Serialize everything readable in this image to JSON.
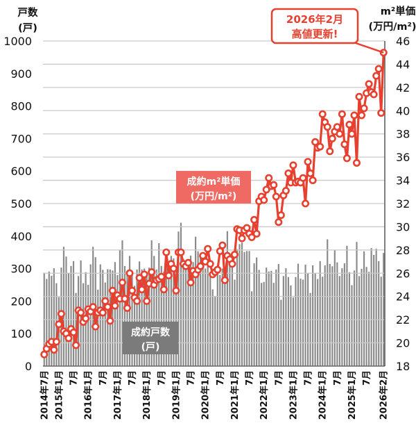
{
  "axis_titles": {
    "left_line1": "戸数",
    "left_line2": "(戸)",
    "right_line1": "m²単価",
    "right_line2": "(万円/m²)"
  },
  "callout": {
    "line1": "2026年2月",
    "line2": "高値更新!"
  },
  "series_labels": {
    "price_line1": "成約m²単価",
    "price_line2": "(万円/m²)",
    "units_line1": "成約戸数",
    "units_line2": "(戸)"
  },
  "colors": {
    "price_line": "#e8402f",
    "price_label_bg": "#ee6a62",
    "units_bar": "#8a8a8a",
    "units_label_bg": "#7b7b7b",
    "grid": "#c9c9c9"
  },
  "chart_data": {
    "type": "bar",
    "title": "",
    "xlabel": "",
    "ylabel_left": "戸数 (戸)",
    "ylabel_right": "m²単価 (万円/m²)",
    "ylim_left": [
      0,
      1000
    ],
    "yticks_left": [
      0,
      100,
      200,
      300,
      400,
      500,
      600,
      700,
      800,
      900,
      1000
    ],
    "ylim_right": [
      18,
      46
    ],
    "yticks_right": [
      18,
      20,
      22,
      24,
      26,
      28,
      30,
      32,
      34,
      36,
      38,
      40,
      42,
      44,
      46
    ],
    "grid": true,
    "legend": "inline labels",
    "categories": [
      "2014-07",
      "2014-08",
      "2014-09",
      "2014-10",
      "2014-11",
      "2014-12",
      "2015-01",
      "2015-02",
      "2015-03",
      "2015-04",
      "2015-05",
      "2015-06",
      "2015-07",
      "2015-08",
      "2015-09",
      "2015-10",
      "2015-11",
      "2015-12",
      "2016-01",
      "2016-02",
      "2016-03",
      "2016-04",
      "2016-05",
      "2016-06",
      "2016-07",
      "2016-08",
      "2016-09",
      "2016-10",
      "2016-11",
      "2016-12",
      "2017-01",
      "2017-02",
      "2017-03",
      "2017-04",
      "2017-05",
      "2017-06",
      "2017-07",
      "2017-08",
      "2017-09",
      "2017-10",
      "2017-11",
      "2017-12",
      "2018-01",
      "2018-02",
      "2018-03",
      "2018-04",
      "2018-05",
      "2018-06",
      "2018-07",
      "2018-08",
      "2018-09",
      "2018-10",
      "2018-11",
      "2018-12",
      "2019-01",
      "2019-02",
      "2019-03",
      "2019-04",
      "2019-05",
      "2019-06",
      "2019-07",
      "2019-08",
      "2019-09",
      "2019-10",
      "2019-11",
      "2019-12",
      "2020-01",
      "2020-02",
      "2020-03",
      "2020-04",
      "2020-05",
      "2020-06",
      "2020-07",
      "2020-08",
      "2020-09",
      "2020-10",
      "2020-11",
      "2020-12",
      "2021-01",
      "2021-02",
      "2021-03",
      "2021-04",
      "2021-05",
      "2021-06",
      "2021-07",
      "2021-08",
      "2021-09",
      "2021-10",
      "2021-11",
      "2021-12",
      "2022-01",
      "2022-02",
      "2022-03",
      "2022-04",
      "2022-05",
      "2022-06",
      "2022-07",
      "2022-08",
      "2022-09",
      "2022-10",
      "2022-11",
      "2022-12",
      "2023-01",
      "2023-02",
      "2023-03",
      "2023-04",
      "2023-05",
      "2023-06",
      "2023-07",
      "2023-08",
      "2023-09",
      "2023-10",
      "2023-11",
      "2023-12",
      "2024-01",
      "2024-02",
      "2024-03",
      "2024-04",
      "2024-05",
      "2024-06",
      "2024-07",
      "2024-08",
      "2024-09",
      "2024-10",
      "2024-11",
      "2024-12",
      "2025-01",
      "2025-02",
      "2025-03",
      "2025-04",
      "2025-05",
      "2025-06",
      "2025-07",
      "2025-08",
      "2025-09",
      "2025-10",
      "2025-11",
      "2025-12",
      "2026-01",
      "2026-02"
    ],
    "xtick_labels": [
      {
        "index": 0,
        "label": "2014年7月"
      },
      {
        "index": 6,
        "label": "2015年1月"
      },
      {
        "index": 12,
        "label": "7月"
      },
      {
        "index": 18,
        "label": "2016年1月"
      },
      {
        "index": 24,
        "label": "7月"
      },
      {
        "index": 30,
        "label": "2017年1月"
      },
      {
        "index": 36,
        "label": "7月"
      },
      {
        "index": 42,
        "label": "2018年1月"
      },
      {
        "index": 48,
        "label": "7月"
      },
      {
        "index": 54,
        "label": "2019年1月"
      },
      {
        "index": 60,
        "label": "7月"
      },
      {
        "index": 66,
        "label": "2020年1月"
      },
      {
        "index": 72,
        "label": "7月"
      },
      {
        "index": 78,
        "label": "2021年1月"
      },
      {
        "index": 84,
        "label": "7月"
      },
      {
        "index": 90,
        "label": "2022年1月"
      },
      {
        "index": 96,
        "label": "7月"
      },
      {
        "index": 102,
        "label": "2023年1月"
      },
      {
        "index": 108,
        "label": "7月"
      },
      {
        "index": 114,
        "label": "2024年1月"
      },
      {
        "index": 120,
        "label": "7月"
      },
      {
        "index": 126,
        "label": "2025年1月"
      },
      {
        "index": 132,
        "label": "7月"
      },
      {
        "index": 139,
        "label": "2026年2月"
      }
    ],
    "series": [
      {
        "name": "成約戸数(戸)",
        "type": "bar",
        "axis": "left",
        "values": [
          287,
          268,
          291,
          278,
          301,
          255,
          212,
          303,
          367,
          337,
          287,
          308,
          323,
          225,
          277,
          325,
          255,
          289,
          250,
          313,
          367,
          335,
          235,
          313,
          296,
          257,
          298,
          297,
          294,
          320,
          280,
          358,
          387,
          308,
          280,
          339,
          283,
          247,
          297,
          322,
          297,
          300,
          284,
          303,
          387,
          339,
          297,
          378,
          308,
          290,
          340,
          320,
          339,
          331,
          300,
          414,
          441,
          330,
          320,
          300,
          340,
          320,
          398,
          353,
          334,
          330,
          300,
          320,
          275,
          236,
          214,
          300,
          280,
          300,
          290,
          415,
          330,
          340,
          266,
          360,
          375,
          380,
          351,
          354,
          354,
          230,
          316,
          334,
          296,
          256,
          259,
          303,
          291,
          293,
          256,
          297,
          314,
          204,
          277,
          301,
          274,
          248,
          211,
          274,
          315,
          269,
          266,
          312,
          285,
          225,
          310,
          285,
          268,
          323,
          275,
          310,
          390,
          314,
          307,
          357,
          319,
          277,
          301,
          316,
          370,
          289,
          249,
          294,
          382,
          277,
          299,
          353,
          305,
          290,
          363,
          342,
          361,
          323,
          275,
          348
        ]
      },
      {
        "name": "成約m²単価(万円/m²)",
        "type": "line",
        "axis": "right",
        "values": [
          19.0,
          19.5,
          19.9,
          20.1,
          19.4,
          20.1,
          21.6,
          22.5,
          21.0,
          20.8,
          20.4,
          21.2,
          20.9,
          19.8,
          22.8,
          22.6,
          21.8,
          22.1,
          22.9,
          22.7,
          23.1,
          21.4,
          22.6,
          22.8,
          22.6,
          23.6,
          23.1,
          21.9,
          24.5,
          23.2,
          24.1,
          23.8,
          25.2,
          23.8,
          23.0,
          26.0,
          24.5,
          23.9,
          23.6,
          25.6,
          24.6,
          25.9,
          23.6,
          25.1,
          26.1,
          25.0,
          25.4,
          25.5,
          25.7,
          24.6,
          27.8,
          25.8,
          26.8,
          26.4,
          24.5,
          27.8,
          27.8,
          26.8,
          26.6,
          26.9,
          25.2,
          26.2,
          25.9,
          26.3,
          26.6,
          27.5,
          27.0,
          28.1,
          26.8,
          25.9,
          26.1,
          26.3,
          27.9,
          28.4,
          25.4,
          27.5,
          27.2,
          26.8,
          27.6,
          29.8,
          29.7,
          29.0,
          29.7,
          29.9,
          29.4,
          29.1,
          30.6,
          29.4,
          32.2,
          32.6,
          32.3,
          33.2,
          34.2,
          33.5,
          33.6,
          32.6,
          30.4,
          31.0,
          32.7,
          33.1,
          34.6,
          33.8,
          35.3,
          33.8,
          33.9,
          33.8,
          34.2,
          32.0,
          35.6,
          34.6,
          34.0,
          37.3,
          36.8,
          36.9,
          39.7,
          39.0,
          38.6,
          36.5,
          37.6,
          38.2,
          38.6,
          38.0,
          39.7,
          37.1,
          35.9,
          38.8,
          38.0,
          39.6,
          35.5,
          41.2,
          39.6,
          40.2,
          41.5,
          42.3,
          41.6,
          41.4,
          43.0,
          43.6,
          39.8,
          45.0
        ]
      }
    ],
    "annotations": [
      {
        "text": "2026年2月 高値更新!",
        "target_index": 139,
        "target_value": 45.0
      }
    ]
  }
}
